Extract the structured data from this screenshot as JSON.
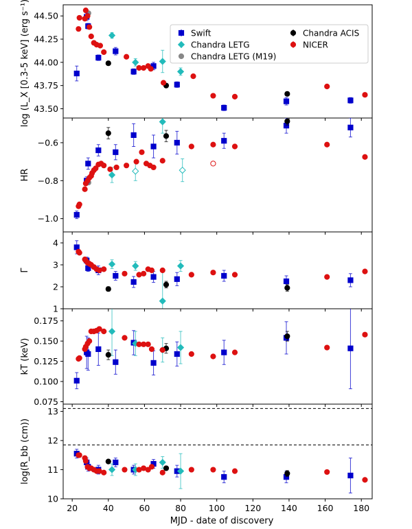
{
  "chart_data": {
    "type": "scatter",
    "xlabel": "MJD - date of discovery",
    "xlim": [
      15,
      186
    ],
    "xticks": [
      20,
      40,
      60,
      80,
      100,
      120,
      140,
      160,
      180
    ],
    "series_styles": [
      {
        "name": "Swift",
        "color": "#0000cc",
        "marker": "square"
      },
      {
        "name": "Chandra LETG",
        "color": "#22bbbb",
        "marker": "diamond"
      },
      {
        "name": "Chandra LETG (M19)",
        "color": "#888888",
        "marker": "circle"
      },
      {
        "name": "Chandra ACIS",
        "color": "#000000",
        "marker": "circle"
      },
      {
        "name": "NICER",
        "color": "#dd1111",
        "marker": "circle"
      }
    ],
    "legend_position": "top-right",
    "panels": [
      {
        "id": "lx",
        "ylabel": "log (L_X [0.3-5 keV] (erg s⁻¹))",
        "ylim": [
          43.4,
          44.62
        ],
        "yticks": [
          "43.50",
          "43.75",
          "44.00",
          "44.25",
          "44.50"
        ],
        "series": {
          "Swift": [
            [
              22.5,
              43.88,
              0.08
            ],
            [
              28,
              44.49,
              0.04
            ],
            [
              28.8,
              44.39,
              0.03
            ],
            [
              34.5,
              44.05,
              0.03
            ],
            [
              44,
              44.12,
              0.04
            ],
            [
              54,
              43.9,
              0.03
            ],
            [
              65,
              43.96,
              0.04
            ],
            [
              78,
              43.76,
              0.03
            ],
            [
              104,
              43.51,
              0.03
            ],
            [
              138.5,
              43.58,
              0.04
            ],
            [
              174,
              43.59,
              0.03
            ]
          ],
          "Chandra LETG": [
            [
              42,
              44.29,
              0.03
            ],
            [
              55,
              44.0,
              0.04
            ],
            [
              70,
              44.01,
              0.12
            ],
            [
              80,
              43.9,
              0.04
            ]
          ],
          "Chandra LETG (M19)": [
            [
              29,
              44.53,
              0.02
            ]
          ],
          "Chandra ACIS": [
            [
              40,
              43.99,
              0.02
            ],
            [
              72,
              43.75,
              0.02
            ],
            [
              139,
              43.66,
              0.02
            ]
          ],
          "NICER": [
            [
              23.5,
              44.36
            ],
            [
              24,
              44.48
            ],
            [
              27,
              44.47
            ],
            [
              27.5,
              44.56
            ],
            [
              28.5,
              44.5
            ],
            [
              29.5,
              44.38
            ],
            [
              30.5,
              44.28
            ],
            [
              32,
              44.21
            ],
            [
              33.5,
              44.19
            ],
            [
              35.5,
              44.18
            ],
            [
              37.5,
              44.11
            ],
            [
              50,
              44.06
            ],
            [
              57,
              43.94
            ],
            [
              59.5,
              43.94
            ],
            [
              62,
              43.96
            ],
            [
              63.5,
              43.93
            ],
            [
              70.5,
              43.78
            ],
            [
              87,
              43.85
            ],
            [
              98,
              43.64
            ],
            [
              110,
              43.63
            ],
            [
              161,
              43.74
            ],
            [
              182,
              43.65
            ]
          ]
        }
      },
      {
        "id": "hr",
        "ylabel": "HR",
        "ylim": [
          -1.07,
          -0.47
        ],
        "yticks": [
          "−1.0",
          "−0.8",
          "−0.6"
        ],
        "series": {
          "Swift": [
            [
              22.5,
              -0.98,
              0.02
            ],
            [
              28,
              -0.8,
              0.02
            ],
            [
              28.8,
              -0.71,
              0.03
            ],
            [
              34.5,
              -0.64,
              0.03
            ],
            [
              44,
              -0.65,
              0.04
            ],
            [
              54,
              -0.56,
              0.06
            ],
            [
              65,
              -0.62,
              0.06
            ],
            [
              78,
              -0.6,
              0.06
            ],
            [
              104,
              -0.59,
              0.04
            ],
            [
              138.5,
              -0.51,
              0.04
            ],
            [
              174,
              -0.52,
              0.05
            ]
          ],
          "Chandra LETG": [
            [
              42,
              -0.77,
              0.04
            ],
            [
              70,
              -0.49,
              0.06
            ]
          ],
          "Chandra LETG open": [
            [
              55,
              -0.75,
              0.05
            ],
            [
              81,
              -0.745,
              0.06
            ]
          ],
          "Chandra LETG (M19)": [
            [
              29,
              -0.81,
              0.01
            ]
          ],
          "Chandra ACIS": [
            [
              40,
              -0.55,
              0.03
            ],
            [
              72,
              -0.565,
              0.03
            ],
            [
              139,
              -0.487,
              0.02
            ]
          ],
          "NICER": [
            [
              23.5,
              -0.935
            ],
            [
              24,
              -0.925
            ],
            [
              27,
              -0.845
            ],
            [
              27.5,
              -0.815
            ],
            [
              28.5,
              -0.8
            ],
            [
              29.5,
              -0.785
            ],
            [
              30.5,
              -0.775
            ],
            [
              31,
              -0.76
            ],
            [
              32,
              -0.745
            ],
            [
              33,
              -0.735
            ],
            [
              34.5,
              -0.715
            ],
            [
              36,
              -0.71
            ],
            [
              37.5,
              -0.72
            ],
            [
              41,
              -0.74
            ],
            [
              44.5,
              -0.73
            ],
            [
              50,
              -0.72
            ],
            [
              55.5,
              -0.7
            ],
            [
              58.5,
              -0.65
            ],
            [
              61,
              -0.71
            ],
            [
              63,
              -0.72
            ],
            [
              65,
              -0.73
            ],
            [
              70,
              -0.695
            ],
            [
              86,
              -0.62
            ],
            [
              98,
              -0.61
            ],
            [
              110,
              -0.62
            ],
            [
              161,
              -0.61
            ],
            [
              182,
              -0.675
            ]
          ],
          "NICER open": [
            [
              98,
              -0.71
            ]
          ]
        }
      },
      {
        "id": "gamma",
        "ylabel": "Γ",
        "ylim": [
          1,
          4.5
        ],
        "yticks": [
          "1",
          "2",
          "3",
          "4"
        ],
        "series": {
          "Swift": [
            [
              22.5,
              3.8,
              0.3
            ],
            [
              28,
              3.2,
              0.15
            ],
            [
              28.8,
              2.85,
              0.15
            ],
            [
              34.5,
              2.75,
              0.2
            ],
            [
              44,
              2.5,
              0.2
            ],
            [
              54,
              2.22,
              0.25
            ],
            [
              65,
              2.45,
              0.25
            ],
            [
              78,
              2.35,
              0.3
            ],
            [
              104,
              2.5,
              0.25
            ],
            [
              138.5,
              2.25,
              0.25
            ],
            [
              174,
              2.3,
              0.3
            ]
          ],
          "Chandra LETG": [
            [
              42,
              3.03,
              0.2
            ],
            [
              55,
              2.95,
              0.2
            ],
            [
              70,
              1.35,
              1.4
            ],
            [
              80,
              2.95,
              0.25
            ]
          ],
          "Chandra LETG (M19)": [],
          "Chandra ACIS": [
            [
              40,
              1.9,
              0.1
            ],
            [
              72,
              2.1,
              0.15
            ],
            [
              139,
              1.95,
              0.15
            ]
          ],
          "NICER": [
            [
              23.5,
              3.6
            ],
            [
              24,
              3.55
            ],
            [
              27,
              3.25
            ],
            [
              27.5,
              3.2
            ],
            [
              28.5,
              3.1
            ],
            [
              29.5,
              3.05
            ],
            [
              30.5,
              3.0
            ],
            [
              32,
              2.9
            ],
            [
              33.5,
              2.8
            ],
            [
              35,
              2.75
            ],
            [
              37.5,
              2.8
            ],
            [
              49,
              2.6
            ],
            [
              57,
              2.55
            ],
            [
              59.5,
              2.6
            ],
            [
              62,
              2.8
            ],
            [
              64,
              2.75
            ],
            [
              70,
              2.75
            ],
            [
              86,
              2.55
            ],
            [
              98,
              2.65
            ],
            [
              110,
              2.55
            ],
            [
              161,
              2.45
            ],
            [
              182,
              2.7
            ]
          ]
        }
      },
      {
        "id": "kt",
        "ylabel": "kT (keV)",
        "ylim": [
          0.072,
          0.19
        ],
        "yticks": [
          "0.075",
          "0.100",
          "0.125",
          "0.150",
          "0.175"
        ],
        "series": {
          "Swift": [
            [
              22.5,
              0.101,
              0.01
            ],
            [
              28,
              0.136,
              0.02
            ],
            [
              28.8,
              0.134,
              0.02
            ],
            [
              34.5,
              0.14,
              0.02
            ],
            [
              44,
              0.124,
              0.015
            ],
            [
              54,
              0.148,
              0.015
            ],
            [
              65,
              0.123,
              0.015
            ],
            [
              78,
              0.134,
              0.015
            ],
            [
              104,
              0.136,
              0.015
            ],
            [
              138.5,
              0.154,
              0.02
            ],
            [
              174,
              0.141,
              0.05
            ]
          ],
          "Chandra LETG": [
            [
              42,
              0.162,
              0.03
            ],
            [
              55,
              0.147,
              0.015
            ],
            [
              70,
              0.139,
              0.015
            ],
            [
              80,
              0.142,
              0.02
            ]
          ],
          "Chandra LETG (M19)": [],
          "Chandra ACIS": [
            [
              40,
              0.133,
              0.006
            ],
            [
              72,
              0.141,
              0.006
            ],
            [
              139,
              0.156,
              0.006
            ]
          ],
          "NICER": [
            [
              23.5,
              0.128
            ],
            [
              24,
              0.129
            ],
            [
              27,
              0.14
            ],
            [
              27.5,
              0.143
            ],
            [
              28.5,
              0.147
            ],
            [
              29.5,
              0.15
            ],
            [
              30.5,
              0.162
            ],
            [
              32,
              0.162
            ],
            [
              33.5,
              0.163
            ],
            [
              35,
              0.165
            ],
            [
              37.5,
              0.162
            ],
            [
              49,
              0.154
            ],
            [
              57,
              0.146
            ],
            [
              59.5,
              0.146
            ],
            [
              62,
              0.146
            ],
            [
              64,
              0.14
            ],
            [
              70,
              0.139
            ],
            [
              86,
              0.134
            ],
            [
              98,
              0.131
            ],
            [
              110,
              0.136
            ],
            [
              161,
              0.142
            ],
            [
              182,
              0.158
            ]
          ]
        }
      },
      {
        "id": "rbb",
        "ylabel": "log(R_bb (cm))",
        "ylim": [
          10,
          13.25
        ],
        "yticks": [
          "10",
          "11",
          "12",
          "13"
        ],
        "hlines": [
          13.1,
          11.85
        ],
        "series": {
          "Swift": [
            [
              22.5,
              11.55,
              0.15
            ],
            [
              28,
              11.25,
              0.15
            ],
            [
              28.8,
              11.1,
              0.15
            ],
            [
              34.5,
              11.0,
              0.15
            ],
            [
              44,
              11.25,
              0.15
            ],
            [
              54,
              11.0,
              0.15
            ],
            [
              65,
              11.2,
              0.15
            ],
            [
              78,
              10.95,
              0.2
            ],
            [
              104,
              10.75,
              0.2
            ],
            [
              138.5,
              10.75,
              0.2
            ],
            [
              174,
              10.8,
              0.6
            ]
          ],
          "Chandra LETG": [
            [
              42,
              11.0,
              0.2
            ],
            [
              55,
              11.0,
              0.2
            ],
            [
              70,
              11.25,
              0.2
            ],
            [
              80,
              10.95,
              0.6
            ]
          ],
          "Chandra LETG (M19)": [],
          "Chandra ACIS": [
            [
              40,
              11.28,
              0.06
            ],
            [
              72,
              11.05,
              0.06
            ],
            [
              139,
              10.87,
              0.1
            ]
          ],
          "NICER": [
            [
              23.5,
              11.5
            ],
            [
              24,
              11.5
            ],
            [
              27,
              11.4
            ],
            [
              27.5,
              11.3
            ],
            [
              28.5,
              11.1
            ],
            [
              29.5,
              11.05
            ],
            [
              30.5,
              11.05
            ],
            [
              32,
              11.0
            ],
            [
              33.5,
              10.95
            ],
            [
              35,
              10.95
            ],
            [
              37.5,
              10.9
            ],
            [
              49,
              11.0
            ],
            [
              57,
              11.0
            ],
            [
              59.5,
              11.05
            ],
            [
              62,
              11.0
            ],
            [
              64,
              11.1
            ],
            [
              70,
              10.9
            ],
            [
              86,
              11.0
            ],
            [
              98,
              11.0
            ],
            [
              110,
              10.95
            ],
            [
              161,
              10.92
            ],
            [
              182,
              10.65
            ]
          ]
        }
      }
    ]
  }
}
